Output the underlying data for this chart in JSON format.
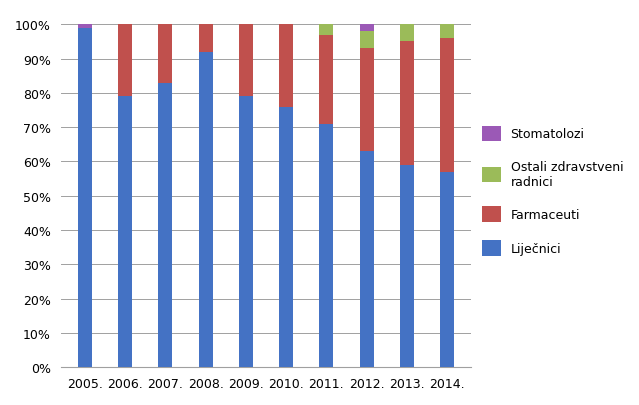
{
  "years": [
    "2005.",
    "2006.",
    "2007.",
    "2008.",
    "2009.",
    "2010.",
    "2011.",
    "2012.",
    "2013.",
    "2014."
  ],
  "lijecnici": [
    99,
    79,
    83,
    92,
    79,
    76,
    71,
    63,
    59,
    57
  ],
  "farmaceuti": [
    0,
    21,
    17,
    8,
    21,
    24,
    26,
    30,
    36,
    39
  ],
  "ostali": [
    0,
    0,
    0,
    0,
    0,
    0,
    3,
    5,
    5,
    4
  ],
  "stomatolozi": [
    1,
    0,
    0,
    0,
    0,
    0,
    0,
    2,
    0,
    0
  ],
  "color_lijecnici": "#4472C4",
  "color_farmaceuti": "#C0504D",
  "color_ostali": "#9BBB59",
  "color_stomatolozi": "#9B59B6",
  "yticks": [
    0,
    10,
    20,
    30,
    40,
    50,
    60,
    70,
    80,
    90,
    100
  ],
  "ylim": [
    0,
    103
  ],
  "background_color": "#FFFFFF",
  "grid_color": "#A0A0A0",
  "bar_width": 0.35,
  "figsize": [
    6.39,
    4.06
  ],
  "dpi": 100
}
